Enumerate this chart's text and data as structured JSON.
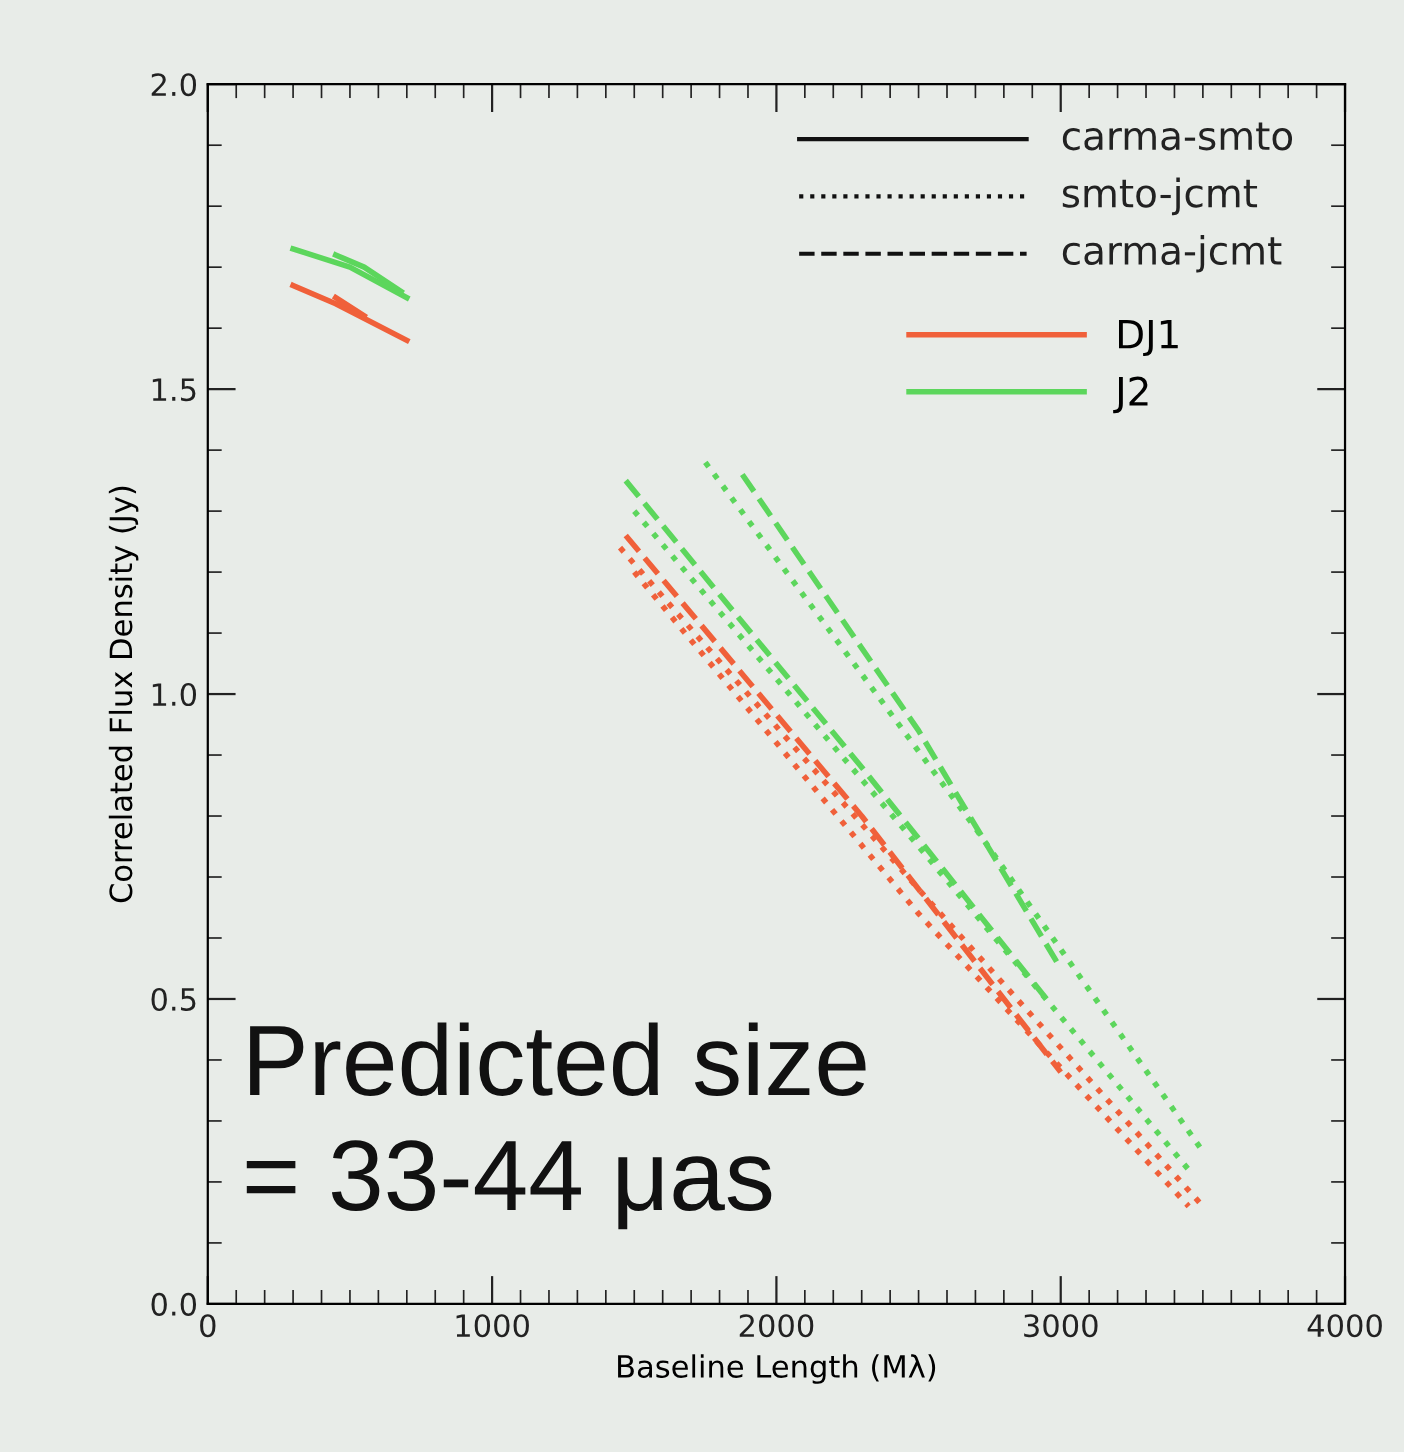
{
  "chart_data": {
    "type": "line",
    "xlabel": "Baseline Length (Mλ)",
    "ylabel": "Correlated Flux Density (Jy)",
    "xlim": [
      0,
      4000
    ],
    "xticks": [
      0,
      1000,
      2000,
      3000,
      4000
    ],
    "ylim": [
      0,
      2.0
    ],
    "yticks": [
      {
        "value": 0,
        "label": "0.0"
      },
      {
        "value": 0.5,
        "label": "0.5"
      },
      {
        "value": 1.0,
        "label": "1.0"
      },
      {
        "value": 1.5,
        "label": "1.5"
      },
      {
        "value": 2.0,
        "label": "2.0"
      }
    ],
    "grid": false,
    "legend": "top right",
    "annotations": [
      "carma-smto",
      "smto-jcmt",
      "carma-jcmt",
      "Predicted size\n= 33-44 μas"
    ],
    "series": [
      {
        "name": "DJ1",
        "color": "#f0603a",
        "line_style": "solid",
        "x": [
          300,
          450,
          700
        ],
        "values": [
          1.67,
          1.64,
          1.58
        ]
      },
      {
        "color": "#f0603a",
        "line_style": "solid",
        "x": [
          450,
          550
        ],
        "values": [
          1.65,
          1.62
        ]
      },
      {
        "name": "J2",
        "color": "#5cd65c",
        "line_style": "solid",
        "x": [
          300,
          500,
          700
        ],
        "values": [
          1.73,
          1.7,
          1.65
        ]
      },
      {
        "color": "#5cd65c",
        "line_style": "solid",
        "x": [
          450,
          550,
          680
        ],
        "values": [
          1.72,
          1.7,
          1.66
        ]
      },
      {
        "color": "#f0603a",
        "line_style": "dotted",
        "x": [
          1450,
          2500,
          3500
        ],
        "values": [
          1.24,
          0.68,
          0.16
        ]
      },
      {
        "color": "#f0603a",
        "line_style": "dotted",
        "x": [
          1500,
          2500,
          3450
        ],
        "values": [
          1.2,
          0.64,
          0.16
        ]
      },
      {
        "color": "#f0603a",
        "line_style": "dashed",
        "x": [
          1470,
          2300,
          3000
        ],
        "values": [
          1.26,
          0.8,
          0.38
        ]
      },
      {
        "color": "#5cd65c",
        "line_style": "dotted",
        "x": [
          1500,
          2500,
          3450
        ],
        "values": [
          1.3,
          0.75,
          0.22
        ]
      },
      {
        "color": "#5cd65c",
        "line_style": "dotted",
        "x": [
          1750,
          2700,
          3500
        ],
        "values": [
          1.38,
          0.78,
          0.25
        ]
      },
      {
        "color": "#5cd65c",
        "line_style": "dashed",
        "x": [
          1470,
          2300,
          2950
        ],
        "values": [
          1.35,
          0.88,
          0.5
        ]
      },
      {
        "color": "#5cd65c",
        "line_style": "dashed",
        "x": [
          1880,
          2500,
          3000
        ],
        "values": [
          1.36,
          0.94,
          0.55
        ]
      }
    ]
  }
}
